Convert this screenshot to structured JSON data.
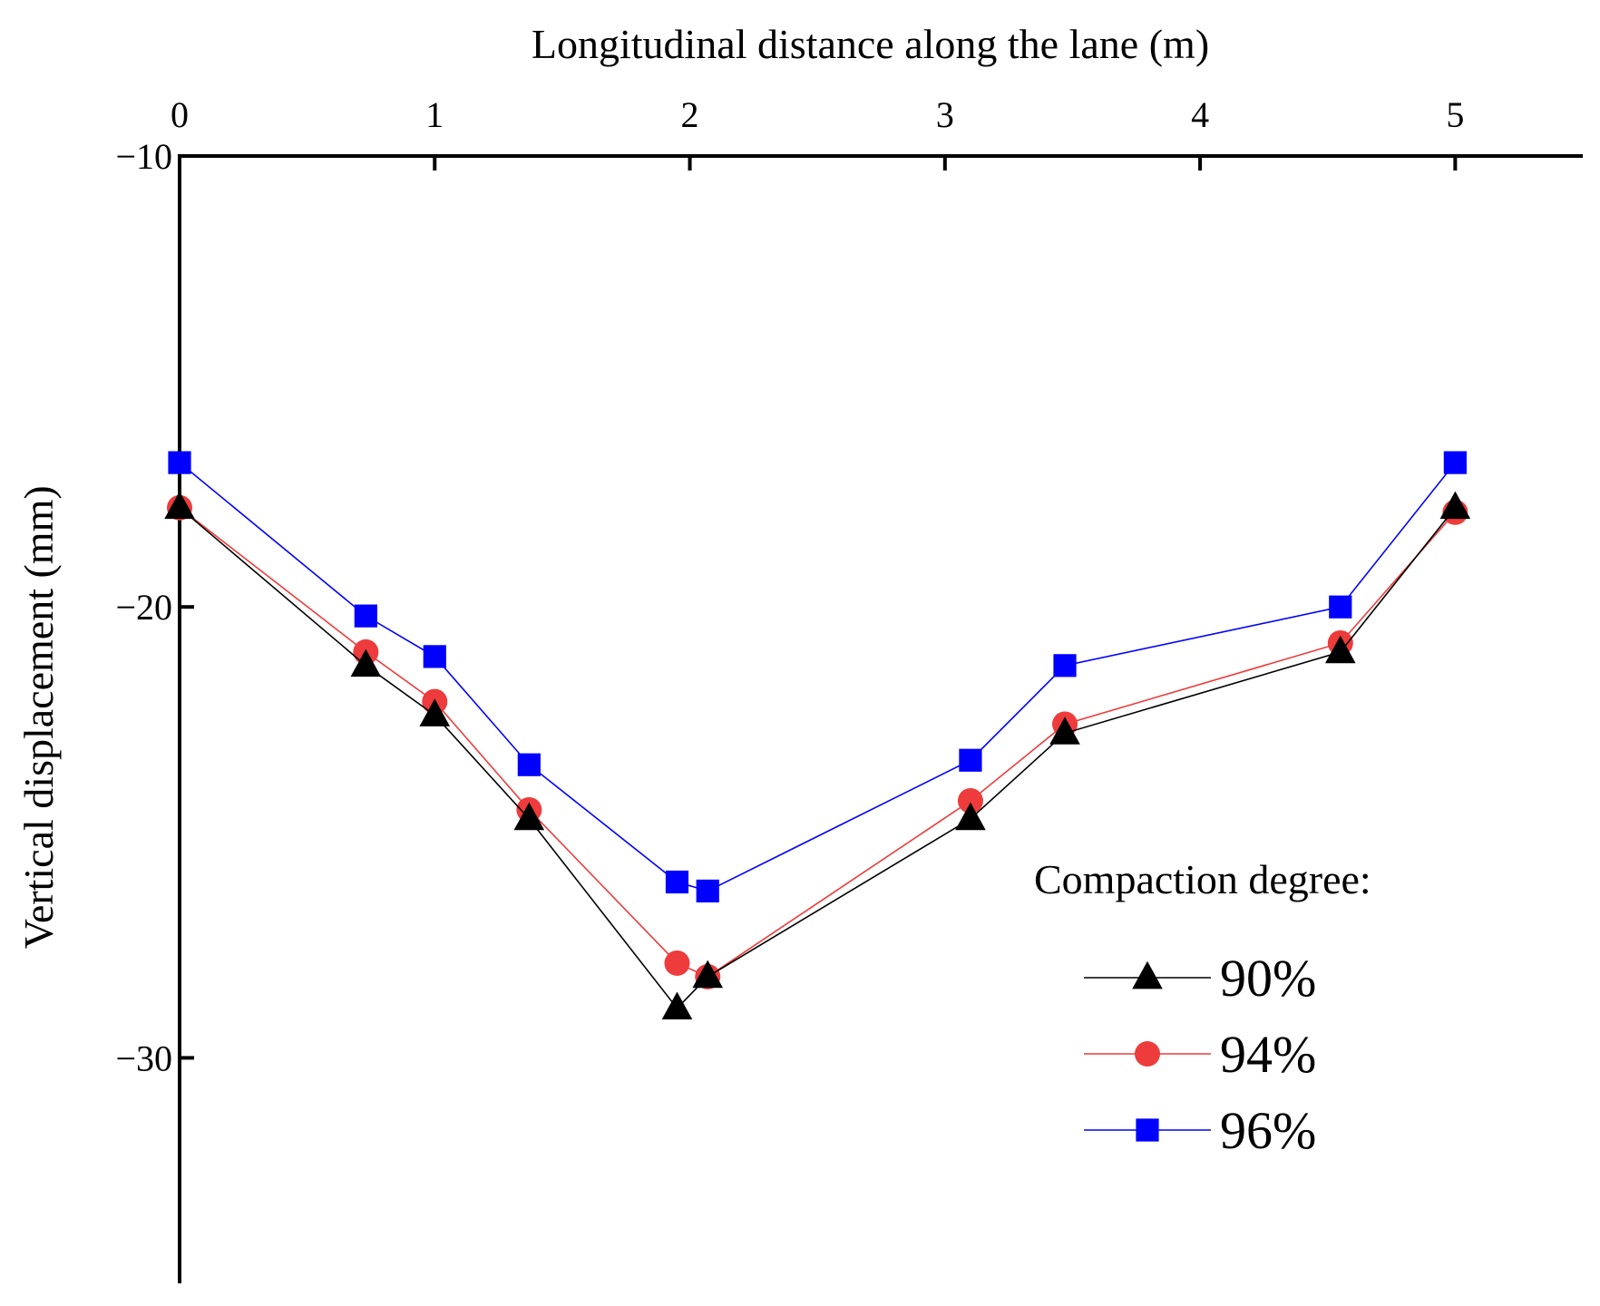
{
  "chart_data": {
    "type": "line",
    "xlabel": "Longitudinal distance along the lane (m)",
    "ylabel": "Vertical displacement (mm)",
    "x_ticks": [
      "0",
      "1",
      "2",
      "3",
      "4",
      "5"
    ],
    "y_ticks": [
      "−10",
      "−20",
      "−30"
    ],
    "xlim": [
      0,
      5.5
    ],
    "ylim": [
      -35,
      -10
    ],
    "x_axis_position": "top",
    "y_axis_inverted": true,
    "grid": false,
    "legend": {
      "title": "Compaction degree:",
      "position": "lower-right"
    },
    "x": [
      0,
      0.73,
      1.0,
      1.37,
      1.95,
      2.07,
      3.1,
      3.47,
      4.55,
      5.0
    ],
    "series": [
      {
        "name": "90%",
        "color": "#000000",
        "marker": "triangle",
        "values": [
          -17.8,
          -21.3,
          -22.4,
          -24.7,
          -28.9,
          -28.2,
          -24.7,
          -22.8,
          -21.0,
          -17.8
        ]
      },
      {
        "name": "94%",
        "color": "#ee3b3b",
        "marker": "circle",
        "values": [
          -17.8,
          -21.0,
          -22.1,
          -24.5,
          -27.9,
          -28.2,
          -24.3,
          -22.6,
          -20.8,
          -17.9
        ]
      },
      {
        "name": "96%",
        "color": "#0000ff",
        "marker": "square",
        "values": [
          -16.8,
          -20.2,
          -21.1,
          -23.5,
          -26.1,
          -26.3,
          -23.4,
          -21.3,
          -20.0,
          -16.8
        ]
      }
    ]
  }
}
